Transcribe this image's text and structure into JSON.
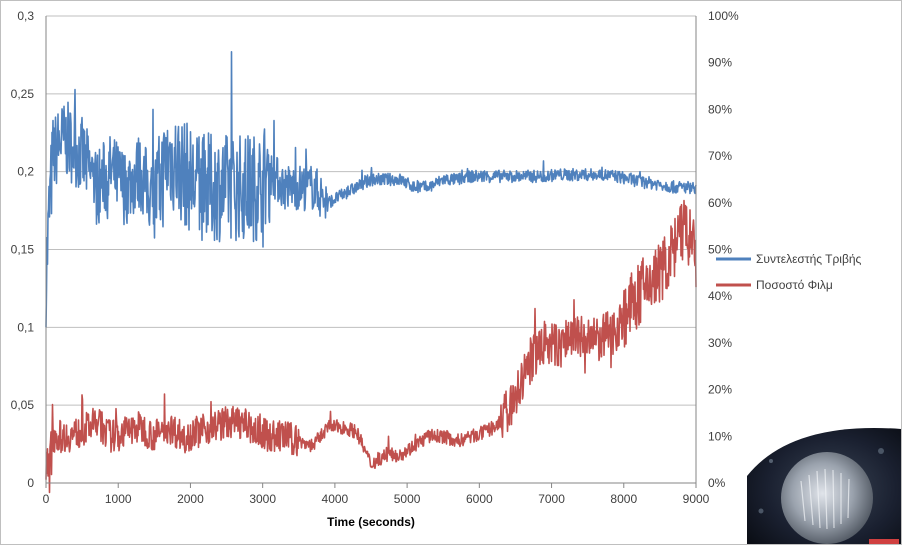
{
  "chart_data": {
    "type": "line",
    "title": "",
    "xlabel": "Time (seconds)",
    "ylabel": "",
    "xlim": [
      0,
      9000
    ],
    "ylim_left": [
      0,
      0.3
    ],
    "ylim_right": [
      0,
      1
    ],
    "x_ticks": [
      "0",
      "1000",
      "2000",
      "3000",
      "4000",
      "5000",
      "6000",
      "7000",
      "8000",
      "9000"
    ],
    "y_left_ticks": [
      "0",
      "0,05",
      "0,1",
      "0,15",
      "0,2",
      "0,25",
      "0,3"
    ],
    "y_right_ticks": [
      "0%",
      "10%",
      "20%",
      "30%",
      "40%",
      "50%",
      "60%",
      "70%",
      "80%",
      "90%",
      "100%"
    ],
    "grid": "horizontal",
    "legend_position": "right",
    "series": [
      {
        "name": "Συντελεστής Τριβής",
        "axis": "left",
        "color": "#4f81bd",
        "x": [
          0,
          50,
          100,
          200,
          300,
          500,
          700,
          900,
          1100,
          1300,
          1500,
          1700,
          1900,
          2100,
          2300,
          2500,
          2700,
          2900,
          3100,
          3300,
          3500,
          3700,
          3900,
          4100,
          4300,
          4500,
          4700,
          4900,
          5100,
          5300,
          5500,
          5700,
          5900,
          6100,
          6300,
          6500,
          6700,
          6900,
          7100,
          7300,
          7500,
          7700,
          7900,
          8100,
          8300,
          8500,
          8700,
          9000
        ],
        "values": [
          0.13,
          0.18,
          0.21,
          0.22,
          0.22,
          0.21,
          0.19,
          0.2,
          0.19,
          0.2,
          0.18,
          0.21,
          0.2,
          0.19,
          0.19,
          0.19,
          0.19,
          0.19,
          0.2,
          0.19,
          0.19,
          0.19,
          0.18,
          0.185,
          0.19,
          0.195,
          0.195,
          0.195,
          0.19,
          0.19,
          0.195,
          0.195,
          0.197,
          0.197,
          0.197,
          0.197,
          0.197,
          0.197,
          0.198,
          0.198,
          0.198,
          0.198,
          0.197,
          0.195,
          0.193,
          0.192,
          0.19,
          0.19
        ]
      },
      {
        "name": "Ποσοστό Φιλμ",
        "axis": "right",
        "color": "#c0504d",
        "x": [
          0,
          50,
          100,
          300,
          500,
          700,
          900,
          1100,
          1300,
          1500,
          1700,
          1900,
          2100,
          2300,
          2500,
          2700,
          2900,
          3100,
          3300,
          3500,
          3700,
          3900,
          4100,
          4300,
          4500,
          4700,
          4900,
          5100,
          5300,
          5500,
          5700,
          5900,
          6100,
          6300,
          6500,
          6600,
          6700,
          6900,
          7100,
          7300,
          7500,
          7700,
          7900,
          8100,
          8300,
          8500,
          8700,
          8850,
          9000
        ],
        "values": [
          0.01,
          0.03,
          0.1,
          0.1,
          0.11,
          0.13,
          0.1,
          0.11,
          0.12,
          0.1,
          0.12,
          0.1,
          0.11,
          0.12,
          0.13,
          0.13,
          0.11,
          0.1,
          0.1,
          0.09,
          0.08,
          0.12,
          0.12,
          0.11,
          0.04,
          0.06,
          0.06,
          0.08,
          0.1,
          0.1,
          0.09,
          0.1,
          0.11,
          0.13,
          0.18,
          0.22,
          0.26,
          0.3,
          0.29,
          0.32,
          0.3,
          0.31,
          0.33,
          0.38,
          0.42,
          0.45,
          0.5,
          0.55,
          0.48
        ]
      }
    ]
  },
  "photo": {
    "description_icon": "microscope-sample-photo-icon"
  }
}
